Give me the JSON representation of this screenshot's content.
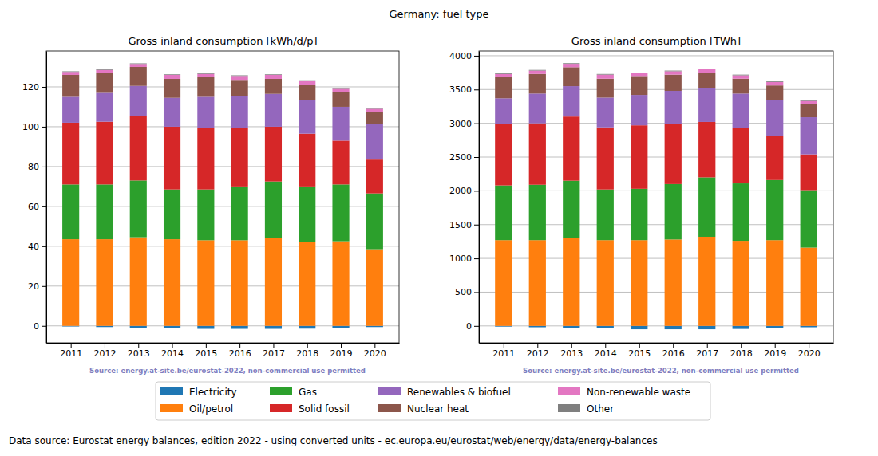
{
  "title": "Germany: fuel type",
  "footer": "Data source: Eurostat energy balances, edition 2022 - using converted units - ec.europa.eu/eurostat/web/energy/data/energy-balances",
  "chart_data": [
    {
      "type": "bar",
      "title": "Gross inland consumption [kWh/d/p]",
      "annotations": [
        "Source: energy.at-site.be/eurostat-2022, non-commercial use permitted"
      ],
      "stacked": true,
      "grid": true,
      "legend": "bottom",
      "categories": [
        "2011",
        "2012",
        "2013",
        "2014",
        "2015",
        "2016",
        "2017",
        "2018",
        "2019",
        "2020"
      ],
      "ylim": [
        -8.5,
        138
      ],
      "yticks": [
        0,
        20,
        40,
        60,
        80,
        100,
        120
      ],
      "series": [
        {
          "name": "Electricity",
          "color": "#1f77b4",
          "values": [
            -0.3,
            -0.6,
            -1.0,
            -1.1,
            -1.5,
            -1.5,
            -1.5,
            -1.4,
            -1.0,
            -0.6
          ]
        },
        {
          "name": "Oil/petrol",
          "color": "#ff7f0e",
          "values": [
            43.5,
            43.5,
            44.5,
            43.5,
            43,
            43,
            44,
            42,
            42.5,
            38.5
          ]
        },
        {
          "name": "Gas",
          "color": "#2ca02c",
          "values": [
            27.5,
            27.5,
            28.5,
            25,
            25.5,
            27,
            28.5,
            28,
            28.5,
            28
          ]
        },
        {
          "name": "Solid fossil",
          "color": "#d62728",
          "values": [
            31,
            31.5,
            32.5,
            31.5,
            31,
            29.5,
            27.5,
            26.5,
            22,
            17
          ]
        },
        {
          "name": "Renewables & biofuel",
          "color": "#9467bd",
          "values": [
            13,
            14.5,
            15,
            14.5,
            15.5,
            16,
            16.5,
            17,
            17,
            18
          ]
        },
        {
          "name": "Nuclear heat",
          "color": "#8c564b",
          "values": [
            11,
            10,
            9.5,
            9.5,
            10,
            8,
            7.5,
            7.5,
            7.5,
            6
          ]
        },
        {
          "name": "Non-renewable waste",
          "color": "#e377c2",
          "values": [
            1.5,
            1.5,
            1.5,
            2,
            1.5,
            2,
            2,
            2,
            1.5,
            1.5
          ]
        },
        {
          "name": "Other",
          "color": "#7f7f7f",
          "values": [
            0.3,
            0.3,
            0.3,
            0.3,
            0.3,
            0.3,
            0.3,
            0.3,
            0.3,
            0.3
          ]
        }
      ]
    },
    {
      "type": "bar",
      "title": "Gross inland consumption [TWh]",
      "annotations": [
        "Source: energy.at-site.be/eurostat-2022, non-commercial use permitted"
      ],
      "stacked": true,
      "grid": true,
      "legend": "bottom",
      "categories": [
        "2011",
        "2012",
        "2013",
        "2014",
        "2015",
        "2016",
        "2017",
        "2018",
        "2019",
        "2020"
      ],
      "ylim": [
        -250,
        4070
      ],
      "yticks": [
        0,
        500,
        1000,
        1500,
        2000,
        2500,
        3000,
        3500,
        4000
      ],
      "series": [
        {
          "name": "Electricity",
          "color": "#1f77b4",
          "values": [
            -10,
            -20,
            -35,
            -35,
            -50,
            -50,
            -50,
            -45,
            -35,
            -20
          ]
        },
        {
          "name": "Oil/petrol",
          "color": "#ff7f0e",
          "values": [
            1270,
            1270,
            1300,
            1270,
            1270,
            1280,
            1320,
            1260,
            1270,
            1160
          ]
        },
        {
          "name": "Gas",
          "color": "#2ca02c",
          "values": [
            810,
            820,
            850,
            750,
            760,
            820,
            880,
            850,
            890,
            850
          ]
        },
        {
          "name": "Solid fossil",
          "color": "#d62728",
          "values": [
            910,
            910,
            950,
            920,
            940,
            890,
            820,
            820,
            650,
            530
          ]
        },
        {
          "name": "Renewables & biofuel",
          "color": "#9467bd",
          "values": [
            380,
            440,
            450,
            440,
            450,
            490,
            500,
            510,
            530,
            550
          ]
        },
        {
          "name": "Nuclear heat",
          "color": "#8c564b",
          "values": [
            320,
            290,
            280,
            280,
            280,
            240,
            230,
            220,
            220,
            190
          ]
        },
        {
          "name": "Non-renewable waste",
          "color": "#e377c2",
          "values": [
            40,
            50,
            50,
            60,
            40,
            50,
            50,
            50,
            50,
            50
          ]
        },
        {
          "name": "Other",
          "color": "#7f7f7f",
          "values": [
            10,
            10,
            10,
            10,
            10,
            10,
            10,
            10,
            10,
            10
          ]
        }
      ]
    }
  ]
}
